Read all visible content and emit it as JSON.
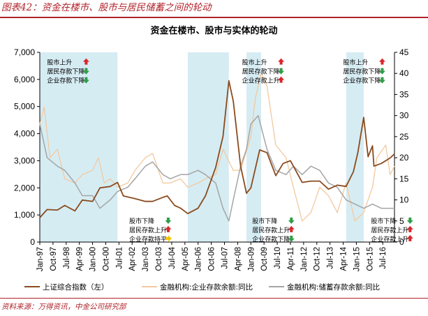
{
  "figure_title": "图表42：资金在楼市、股市与居民储蓄之间的轮动",
  "source": "资料来源：万得资讯，中金公司研究部",
  "colors": {
    "series1": "#8a4b1e",
    "series2": "#f2c9a0",
    "series3": "#a5a5a5",
    "shade": "#d6ecf3",
    "up": "#d9262b",
    "down": "#2e9e48",
    "flat": "#f2c400"
  },
  "chart_data": {
    "type": "line",
    "title": "资金在楼市、股市与实体的轮动",
    "y_left": {
      "ylim": [
        0,
        7000
      ],
      "ticks": [
        "0",
        "1,000",
        "2,000",
        "3,000",
        "4,000",
        "5,000",
        "6,000",
        "7,000"
      ]
    },
    "y_right": {
      "ylim": [
        0,
        45
      ],
      "ticks": [
        "0",
        "5",
        "10",
        "15",
        "20",
        "25",
        "30",
        "35",
        "40",
        "45"
      ]
    },
    "x_range": [
      "1997-01",
      "2017-03"
    ],
    "x_ticks": [
      "Jan-97",
      "Oct-97",
      "Jul-98",
      "Apr-99",
      "Jan-00",
      "Oct-00",
      "Jul-01",
      "Apr-02",
      "Jan-03",
      "Oct-03",
      "Jul-04",
      "Apr-05",
      "Jan-06",
      "Oct-06",
      "Jul-07",
      "Apr-08",
      "Jan-09",
      "Oct-09",
      "Jul-10",
      "Apr-11",
      "Jan-12",
      "Oct-12",
      "Jul-13",
      "Apr-14",
      "Jan-15",
      "Oct-15",
      "Jul-16"
    ],
    "shaded_periods": [
      [
        "1997-01",
        "2001-06"
      ],
      [
        "2005-06",
        "2007-10"
      ],
      [
        "2008-10",
        "2009-08"
      ],
      [
        "2014-06",
        "2015-06"
      ]
    ],
    "series": [
      {
        "name": "上证综合指数（左）",
        "axis": "left",
        "x": [
          "1997-01",
          "1997-06",
          "1998-01",
          "1998-06",
          "1999-01",
          "1999-06",
          "2000-01",
          "2000-06",
          "2001-01",
          "2001-06",
          "2001-10",
          "2002-06",
          "2003-01",
          "2003-06",
          "2004-01",
          "2004-04",
          "2004-09",
          "2005-01",
          "2005-06",
          "2006-01",
          "2006-06",
          "2007-01",
          "2007-06",
          "2007-10",
          "2008-01",
          "2008-06",
          "2008-10",
          "2009-01",
          "2009-07",
          "2009-12",
          "2010-06",
          "2010-11",
          "2011-04",
          "2011-12",
          "2012-06",
          "2012-12",
          "2013-06",
          "2013-12",
          "2014-06",
          "2014-11",
          "2015-02",
          "2015-06",
          "2015-09",
          "2015-12",
          "2016-01",
          "2016-06",
          "2016-12",
          "2017-03"
        ],
        "y": [
          900,
          1200,
          1180,
          1350,
          1150,
          1550,
          1500,
          2000,
          2050,
          2200,
          1700,
          1600,
          1500,
          1500,
          1650,
          1700,
          1350,
          1250,
          1050,
          1250,
          1700,
          2750,
          3900,
          5950,
          5200,
          2800,
          1800,
          2000,
          3400,
          3300,
          2450,
          2900,
          3000,
          2200,
          2250,
          2250,
          1950,
          2100,
          2050,
          2600,
          3300,
          4600,
          3150,
          3550,
          2800,
          2900,
          3100,
          3250
        ]
      },
      {
        "name": "金融机构:企业存款余额:同比",
        "axis": "right",
        "x": [
          "1997-01",
          "1997-04",
          "1997-08",
          "1998-01",
          "1998-06",
          "1999-01",
          "1999-06",
          "2000-01",
          "2000-05",
          "2000-09",
          "2001-01",
          "2001-06",
          "2002-01",
          "2002-06",
          "2003-01",
          "2003-06",
          "2004-01",
          "2004-06",
          "2005-01",
          "2005-06",
          "2006-01",
          "2006-06",
          "2007-01",
          "2007-06",
          "2008-01",
          "2008-06",
          "2009-01",
          "2009-04",
          "2009-08",
          "2009-12",
          "2010-06",
          "2011-01",
          "2011-06",
          "2011-12",
          "2012-06",
          "2012-12",
          "2013-06",
          "2013-12",
          "2014-06",
          "2014-12",
          "2015-06",
          "2015-12",
          "2016-03",
          "2016-09",
          "2016-12",
          "2017-03"
        ],
        "y": [
          28,
          32,
          20,
          22,
          15,
          14,
          16,
          17,
          20,
          14,
          15,
          13,
          14,
          17,
          20,
          21,
          14,
          14,
          15,
          13,
          14,
          15,
          16,
          22,
          17,
          17,
          25,
          34,
          40,
          37,
          23,
          20,
          13,
          5,
          7,
          13,
          11,
          7,
          14,
          5,
          7,
          13,
          20,
          23,
          16,
          18
        ]
      },
      {
        "name": "金融机构:储蓄存款余额:同比",
        "axis": "right",
        "x": [
          "1997-01",
          "1997-06",
          "1998-01",
          "1998-06",
          "1999-01",
          "1999-06",
          "2000-01",
          "2000-06",
          "2001-01",
          "2001-06",
          "2002-01",
          "2002-06",
          "2003-01",
          "2003-06",
          "2004-01",
          "2004-06",
          "2005-01",
          "2005-06",
          "2006-01",
          "2006-06",
          "2007-01",
          "2007-06",
          "2007-10",
          "2008-01",
          "2008-06",
          "2008-10",
          "2009-01",
          "2009-06",
          "2009-12",
          "2010-06",
          "2011-01",
          "2011-06",
          "2011-12",
          "2012-06",
          "2012-12",
          "2013-06",
          "2013-12",
          "2014-06",
          "2014-12",
          "2015-06",
          "2015-12",
          "2016-06",
          "2016-12",
          "2017-03"
        ],
        "y": [
          28,
          20,
          18,
          17,
          14,
          11,
          11,
          8,
          10,
          12,
          13,
          15,
          18,
          19,
          16,
          15,
          16,
          16,
          17,
          16,
          14,
          8,
          5,
          10,
          18,
          22,
          28,
          30,
          22,
          17,
          16,
          18,
          16,
          18,
          17,
          14,
          13,
          10,
          9,
          8,
          9,
          8,
          8,
          8
        ]
      }
    ],
    "annotations": [
      {
        "lines": [
          "股市上升",
          "居民存款下降",
          "企业存款下降"
        ],
        "arrows": [
          "up",
          "down",
          "down"
        ],
        "at": [
          "1997-05",
          6650
        ]
      },
      {
        "lines": [
          "股市下降",
          "居民存款上升",
          "企业存款持平"
        ],
        "arrows": [
          "down",
          "up",
          "flat"
        ],
        "at": [
          "2002-01",
          800
        ]
      },
      {
        "lines": [
          "股市上升",
          "居民存款下降",
          "企业存款上升"
        ],
        "arrows": [
          "up",
          "down",
          "up"
        ],
        "at": [
          "2008-06",
          6650
        ]
      },
      {
        "lines": [
          "股市下降",
          "居民存款上升",
          "企业存款下降"
        ],
        "arrows": [
          "down",
          "up",
          "down"
        ],
        "at": [
          "2009-01",
          800
        ]
      },
      {
        "lines": [
          "股市上升",
          "居民存款下降",
          "企业存款下降"
        ],
        "arrows": [
          "up",
          "down",
          "down"
        ],
        "at": [
          "2014-03",
          6650
        ]
      },
      {
        "lines": [
          "股市下降",
          "居民存款上升",
          "企业存款上升"
        ],
        "arrows": [
          "down",
          "up",
          "up"
        ],
        "at": [
          "2015-10",
          800
        ]
      }
    ]
  }
}
